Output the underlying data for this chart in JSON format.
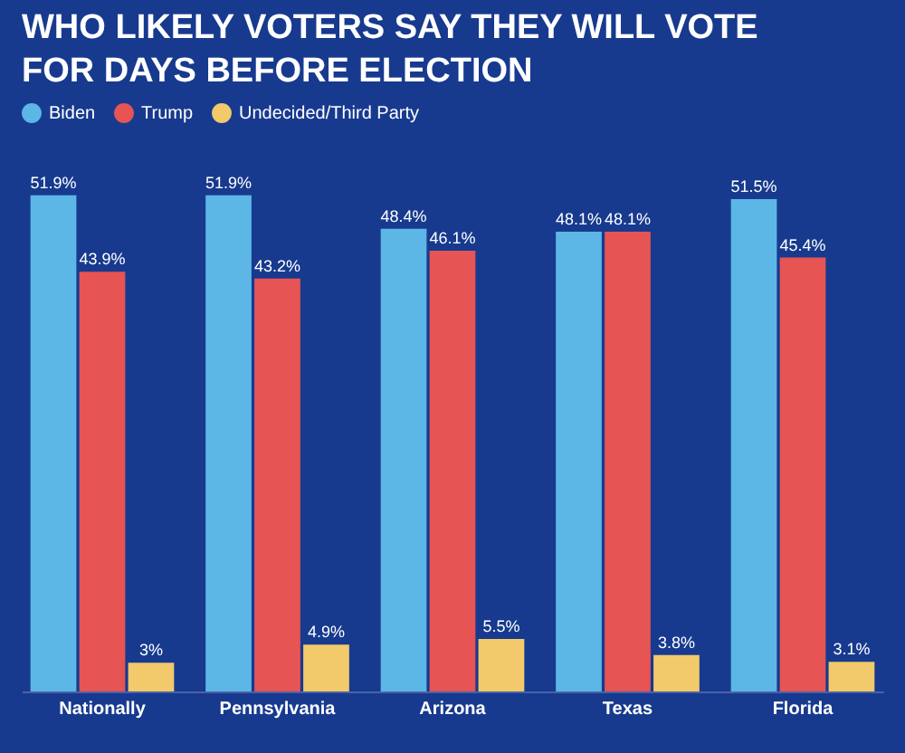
{
  "chart_data": {
    "type": "bar",
    "title": "WHO LIKELY VOTERS SAY THEY WILL VOTE FOR DAYS BEFORE ELECTION",
    "categories": [
      "Nationally",
      "Pennsylvania",
      "Arizona",
      "Texas",
      "Florida"
    ],
    "series": [
      {
        "name": "Biden",
        "color": "#5cb6e6",
        "values": [
          51.9,
          51.9,
          48.4,
          48.1,
          51.5
        ],
        "value_labels": [
          "51.9%",
          "51.9%",
          "48.4%",
          "48.1%",
          "51.5%"
        ]
      },
      {
        "name": "Trump",
        "color": "#e65454",
        "values": [
          43.9,
          43.2,
          46.1,
          48.1,
          45.4
        ],
        "value_labels": [
          "43.9%",
          "43.2%",
          "46.1%",
          "48.1%",
          "45.4%"
        ]
      },
      {
        "name": "Undecided/Third Party",
        "color": "#f2c96b",
        "values": [
          3,
          4.9,
          5.5,
          3.8,
          3.1
        ],
        "value_labels": [
          "3%",
          "4.9%",
          "5.5%",
          "3.8%",
          "3.1%"
        ]
      }
    ],
    "legend": "top",
    "grid": false
  }
}
